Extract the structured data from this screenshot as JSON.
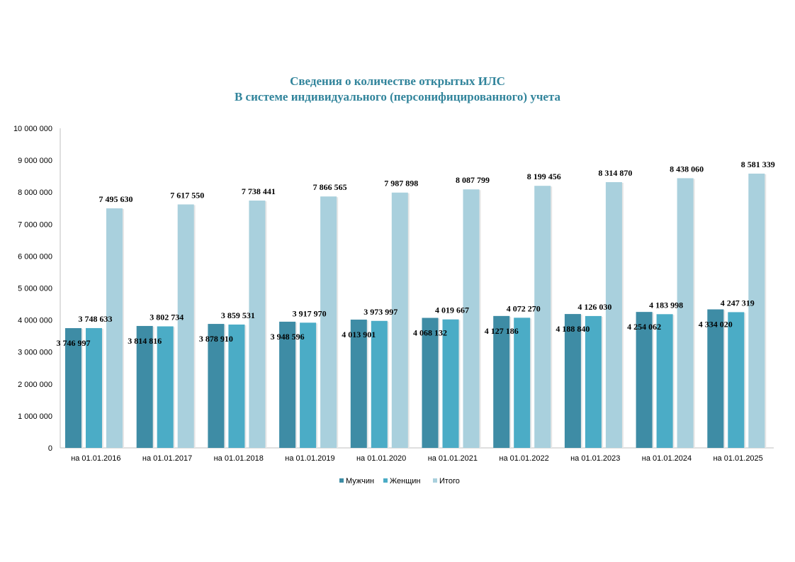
{
  "chart_data": {
    "type": "bar",
    "title": "Сведения о количестве открытых ИЛС",
    "subtitle": "В системе индивидуального (персонифицированного) учета",
    "ylim": [
      0,
      10000000
    ],
    "yticks": [
      0,
      1000000,
      2000000,
      3000000,
      4000000,
      5000000,
      6000000,
      7000000,
      8000000,
      9000000,
      10000000
    ],
    "ytick_labels": [
      "0",
      "1 000 000",
      "2 000 000",
      "3 000 000",
      "4 000 000",
      "5 000 000",
      "6 000 000",
      "7 000 000",
      "8 000 000",
      "9 000 000",
      "10 000 000"
    ],
    "grid": false,
    "legend_position": "bottom",
    "categories": [
      "на 01.01.2016",
      "на 01.01.2017",
      "на 01.01.2018",
      "на 01.01.2019",
      "на 01.01.2020",
      "на 01.01.2021",
      "на 01.01.2022",
      "на 01.01.2023",
      "на 01.01.2024",
      "на 01.01.2025"
    ],
    "series": [
      {
        "name": "Мужчин",
        "color": "#3e8ca5",
        "values": [
          3746997,
          3814816,
          3878910,
          3948596,
          4013901,
          4068132,
          4127186,
          4188840,
          4254062,
          4334020
        ],
        "labels": [
          "3 746 997",
          "3 814 816",
          "3 878 910",
          "3 948 596",
          "4 013 901",
          "4 068 132",
          "4 127 186",
          "4 188 840",
          "4 254 062",
          "4 334 020"
        ]
      },
      {
        "name": "Женщин",
        "color": "#4bacc6",
        "values": [
          3748633,
          3802734,
          3859531,
          3917970,
          3973997,
          4019667,
          4072270,
          4126030,
          4183998,
          4247319
        ],
        "labels": [
          "3 748 633",
          "3 802 734",
          "3 859 531",
          "3 917 970",
          "3 973 997",
          "4 019 667",
          "4 072 270",
          "4 126 030",
          "4 183 998",
          "4 247 319"
        ]
      },
      {
        "name": "Итого",
        "color": "#a9d0dd",
        "values": [
          7495630,
          7617550,
          7738441,
          7866565,
          7987898,
          8087799,
          8199456,
          8314870,
          8438060,
          8581339
        ],
        "labels": [
          "7 495 630",
          "7 617 550",
          "7 738 441",
          "7 866 565",
          "7 987 898",
          "8 087 799",
          "8 199 456",
          "8 314 870",
          "8 438 060",
          "8 581 339"
        ]
      }
    ]
  }
}
